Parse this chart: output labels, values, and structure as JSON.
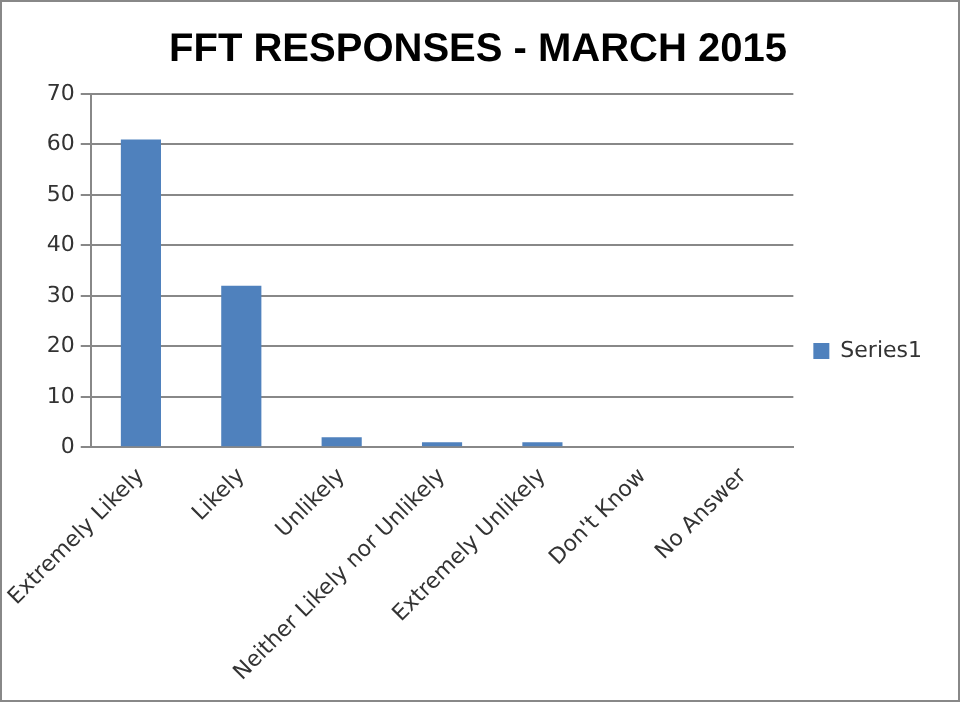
{
  "chart_data": {
    "type": "bar",
    "title": "FFT RESPONSES - MARCH 2015",
    "categories": [
      "Extremely Likely",
      "Likely",
      "Unlikely",
      "Neither Likely nor Unlikely",
      "Extremely Unlikely",
      "Don't Know",
      "No Answer"
    ],
    "series": [
      {
        "name": "Series1",
        "color": "#4f81bd",
        "values": [
          61,
          32,
          2,
          1,
          1,
          0,
          0
        ]
      }
    ],
    "ylim": [
      0,
      70
    ],
    "yticks": [
      0,
      10,
      20,
      30,
      40,
      50,
      60,
      70
    ],
    "grid": "y",
    "legend": "right"
  }
}
